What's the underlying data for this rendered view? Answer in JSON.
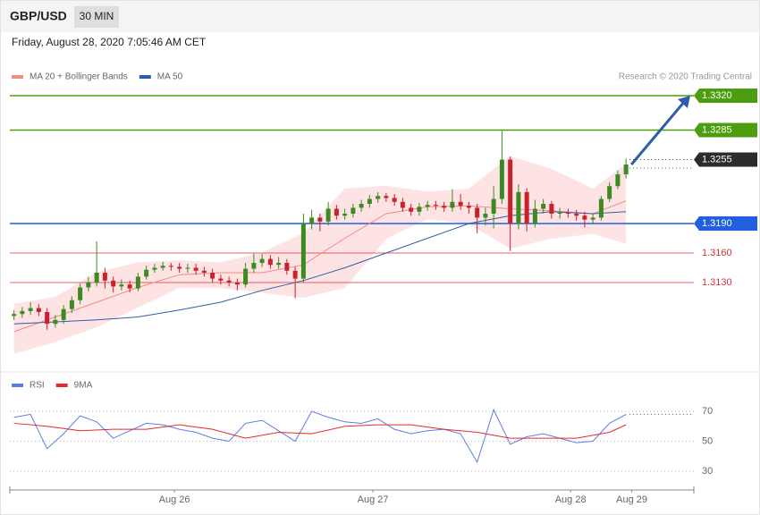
{
  "header": {
    "symbol": "GBP/USD",
    "interval": "30 MIN",
    "datetime": "Friday, August 28, 2020 7:05:46 AM CET"
  },
  "chart_data": [
    {
      "type": "candlestick",
      "source": "Research © 2020 Trading Central",
      "xlim": [
        -0.5,
        82.2
      ],
      "ylim": [
        1.306,
        1.338
      ],
      "up_color": "#3b8a22",
      "down_color": "#c8232c",
      "x": [
        0,
        1,
        2,
        3,
        4,
        5,
        6,
        7,
        8,
        9,
        10,
        11,
        12,
        13,
        14,
        15,
        16,
        17,
        18,
        19,
        20,
        21,
        22,
        23,
        24,
        25,
        26,
        27,
        28,
        29,
        30,
        31,
        32,
        33,
        34,
        35,
        36,
        37,
        38,
        39,
        40,
        41,
        42,
        43,
        44,
        45,
        46,
        47,
        48,
        49,
        50,
        51,
        52,
        53,
        54,
        55,
        56,
        57,
        58,
        59,
        60,
        61,
        62,
        63,
        64,
        65,
        66,
        67,
        68,
        69,
        70,
        71,
        72,
        73,
        74
      ],
      "open": [
        1.3096,
        1.3098,
        1.3101,
        1.3104,
        1.31,
        1.3088,
        1.3092,
        1.3103,
        1.3112,
        1.3125,
        1.313,
        1.314,
        1.3132,
        1.3126,
        1.3128,
        1.3124,
        1.3136,
        1.3143,
        1.3145,
        1.3147,
        1.3146,
        1.3144,
        1.3145,
        1.3142,
        1.314,
        1.3134,
        1.3132,
        1.313,
        1.3128,
        1.3144,
        1.315,
        1.3154,
        1.3148,
        1.315,
        1.3142,
        1.3134,
        1.319,
        1.3196,
        1.3192,
        1.3205,
        1.3198,
        1.32,
        1.3206,
        1.321,
        1.3215,
        1.3218,
        1.3216,
        1.3212,
        1.3206,
        1.3202,
        1.3207,
        1.3209,
        1.3208,
        1.3206,
        1.3212,
        1.3208,
        1.3206,
        1.3196,
        1.32,
        1.3215,
        1.3255,
        1.319,
        1.3222,
        1.319,
        1.3205,
        1.321,
        1.32,
        1.3201,
        1.32,
        1.3198,
        1.3194,
        1.3196,
        1.3215,
        1.3228,
        1.324
      ],
      "high": [
        1.3102,
        1.3105,
        1.311,
        1.3108,
        1.3104,
        1.3097,
        1.3107,
        1.3116,
        1.3129,
        1.3136,
        1.3172,
        1.3145,
        1.3136,
        1.3133,
        1.3132,
        1.314,
        1.3147,
        1.3149,
        1.3151,
        1.315,
        1.315,
        1.3149,
        1.3149,
        1.3146,
        1.3144,
        1.3138,
        1.3136,
        1.3134,
        1.315,
        1.316,
        1.3159,
        1.3158,
        1.3156,
        1.3154,
        1.3146,
        1.32,
        1.3204,
        1.32,
        1.3212,
        1.3209,
        1.3205,
        1.321,
        1.3214,
        1.3219,
        1.3222,
        1.3221,
        1.322,
        1.3216,
        1.321,
        1.3211,
        1.3213,
        1.3213,
        1.3212,
        1.3225,
        1.322,
        1.3212,
        1.321,
        1.3206,
        1.3228,
        1.3284,
        1.3258,
        1.323,
        1.3226,
        1.3214,
        1.3215,
        1.3213,
        1.3206,
        1.3205,
        1.3204,
        1.3202,
        1.32,
        1.3218,
        1.3232,
        1.3244,
        1.3256
      ],
      "low": [
        1.3092,
        1.3094,
        1.3097,
        1.3096,
        1.3082,
        1.3084,
        1.3088,
        1.3099,
        1.3108,
        1.3121,
        1.3126,
        1.3124,
        1.312,
        1.3122,
        1.312,
        1.3121,
        1.3133,
        1.314,
        1.3142,
        1.3142,
        1.314,
        1.314,
        1.3138,
        1.3136,
        1.313,
        1.3128,
        1.3126,
        1.3122,
        1.3125,
        1.314,
        1.3146,
        1.3144,
        1.3144,
        1.3138,
        1.3114,
        1.313,
        1.3184,
        1.3182,
        1.3188,
        1.3194,
        1.3194,
        1.3196,
        1.3202,
        1.3206,
        1.3211,
        1.3212,
        1.3208,
        1.3202,
        1.3198,
        1.3198,
        1.3203,
        1.3204,
        1.3202,
        1.3202,
        1.3204,
        1.32,
        1.318,
        1.3188,
        1.3185,
        1.321,
        1.3162,
        1.3184,
        1.3182,
        1.3186,
        1.32,
        1.3195,
        1.3195,
        1.3196,
        1.3193,
        1.3186,
        1.319,
        1.3193,
        1.3212,
        1.3225,
        1.3236
      ],
      "close": [
        1.3098,
        1.3101,
        1.3104,
        1.31,
        1.3088,
        1.3092,
        1.3103,
        1.3112,
        1.3125,
        1.313,
        1.314,
        1.3132,
        1.3126,
        1.3128,
        1.3124,
        1.3136,
        1.3143,
        1.3145,
        1.3147,
        1.3146,
        1.3144,
        1.3145,
        1.3142,
        1.314,
        1.3134,
        1.3132,
        1.313,
        1.3128,
        1.3144,
        1.315,
        1.3154,
        1.3148,
        1.315,
        1.3142,
        1.3134,
        1.319,
        1.3196,
        1.3192,
        1.3205,
        1.3198,
        1.32,
        1.3206,
        1.321,
        1.3215,
        1.3218,
        1.3216,
        1.3212,
        1.3206,
        1.3202,
        1.3207,
        1.3209,
        1.3208,
        1.3206,
        1.3212,
        1.3208,
        1.3206,
        1.3196,
        1.32,
        1.3215,
        1.3255,
        1.319,
        1.3222,
        1.319,
        1.3205,
        1.321,
        1.32,
        1.3201,
        1.32,
        1.3198,
        1.3194,
        1.3196,
        1.3215,
        1.3228,
        1.324,
        1.325
      ],
      "overlays": [
        {
          "name": "MA 20 + Bollinger Bands",
          "color": "#f28b82",
          "band_color": "#fde3e3",
          "x": [
            0,
            5,
            10,
            15,
            20,
            25,
            30,
            35,
            40,
            45,
            50,
            55,
            60,
            65,
            70,
            74
          ],
          "values": [
            1.308,
            1.3095,
            1.311,
            1.3125,
            1.3138,
            1.314,
            1.314,
            1.3148,
            1.3175,
            1.32,
            1.3207,
            1.3208,
            1.3205,
            1.3203,
            1.32,
            1.3213
          ],
          "upper": [
            1.3108,
            1.3115,
            1.314,
            1.315,
            1.3152,
            1.315,
            1.316,
            1.318,
            1.3225,
            1.3228,
            1.3222,
            1.3225,
            1.3258,
            1.3245,
            1.3225,
            1.325
          ],
          "lower": [
            1.3058,
            1.307,
            1.3085,
            1.3105,
            1.3125,
            1.3125,
            1.312,
            1.3115,
            1.3125,
            1.3175,
            1.3195,
            1.319,
            1.3165,
            1.3175,
            1.318,
            1.317
          ]
        },
        {
          "name": "MA 50",
          "color": "#2e5ea8",
          "x": [
            0,
            5,
            10,
            15,
            20,
            25,
            30,
            35,
            40,
            45,
            50,
            55,
            60,
            65,
            70,
            74
          ],
          "values": [
            1.3088,
            1.309,
            1.3092,
            1.3095,
            1.3102,
            1.311,
            1.3122,
            1.3132,
            1.3145,
            1.316,
            1.3175,
            1.319,
            1.3198,
            1.3202,
            1.32,
            1.3202
          ]
        }
      ],
      "levels": [
        {
          "value": 1.332,
          "label": "1.3320",
          "color": "#4c9e10",
          "boxed": true,
          "line": "solid"
        },
        {
          "value": 1.3285,
          "color": "#4c9e10",
          "boxed": true,
          "line": "solid"
        },
        {
          "value": 1.3255,
          "color": "#2b2b2b",
          "boxed": true,
          "line": "dotted"
        },
        {
          "value": 1.319,
          "label": "1.3190",
          "color": "#1f5fe0",
          "boxed": true,
          "line": "solid"
        },
        {
          "value": 1.316,
          "label": "1.3160",
          "color": "#d9303a",
          "boxed": false,
          "line": "solid"
        },
        {
          "value": 1.313,
          "label": "1.3130",
          "color": "#d9303a",
          "boxed": false,
          "line": "solid"
        }
      ]
    },
    {
      "type": "line",
      "xlim": [
        -0.5,
        82.2
      ],
      "ylim": [
        18,
        82
      ],
      "yticks": [
        30,
        50,
        70
      ],
      "xticks": [
        {
          "value": 19.4,
          "label": "Aug 26"
        },
        {
          "value": 43.4,
          "label": "Aug 27"
        },
        {
          "value": 67.3,
          "label": "Aug 28"
        },
        {
          "value": 74.7,
          "label": "Aug 29"
        }
      ],
      "series": [
        {
          "name": "RSI",
          "color": "#5b7fe0",
          "x": [
            0,
            2,
            4,
            6,
            8,
            10,
            12,
            14,
            16,
            18,
            20,
            22,
            24,
            26,
            28,
            30,
            32,
            34,
            36,
            38,
            40,
            42,
            44,
            46,
            48,
            50,
            52,
            54,
            56,
            58,
            60,
            62,
            64,
            66,
            68,
            70,
            72,
            74
          ],
          "values": [
            66,
            68,
            45,
            55,
            67,
            63,
            52,
            57,
            62,
            61,
            58,
            56,
            52,
            50,
            62,
            64,
            57,
            50,
            70,
            66,
            63,
            62,
            65,
            58,
            55,
            57,
            58,
            55,
            36,
            71,
            48,
            53,
            55,
            52,
            49,
            50,
            62,
            68
          ]
        },
        {
          "name": "9MA",
          "color": "#e52b2b",
          "x": [
            0,
            4,
            8,
            12,
            16,
            20,
            24,
            28,
            32,
            36,
            40,
            44,
            48,
            52,
            56,
            60,
            64,
            68,
            72,
            74
          ],
          "values": [
            62,
            60,
            57,
            58,
            58,
            61,
            58,
            52,
            56,
            55,
            60,
            61,
            61,
            58,
            56,
            52,
            52,
            52,
            56,
            61
          ]
        }
      ]
    }
  ]
}
